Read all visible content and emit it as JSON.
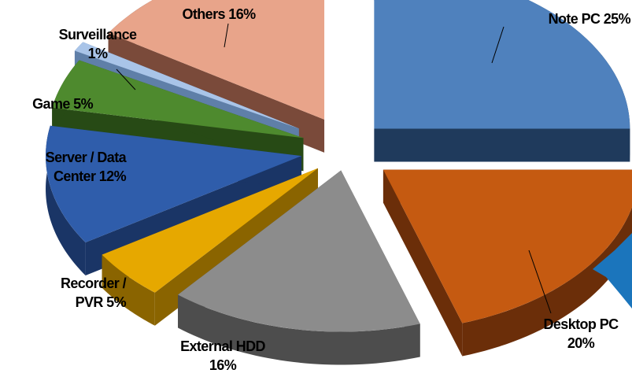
{
  "chart_data": {
    "type": "pie",
    "title": "",
    "slices": [
      {
        "name": "Note PC",
        "value": 25,
        "color": "#4f81bd",
        "side": "#1f3a5c",
        "label_lines": [
          "Note PC 25%"
        ]
      },
      {
        "name": "Desktop PC",
        "value": 20,
        "color": "#c55a11",
        "side": "#6b2e09",
        "label_lines": [
          "Desktop PC",
          "20%"
        ]
      },
      {
        "name": "External HDD",
        "value": 16,
        "color": "#8c8c8c",
        "side": "#4d4d4d",
        "label_lines": [
          "External HDD",
          "16%"
        ]
      },
      {
        "name": "Recorder / PVR",
        "value": 5,
        "color": "#e6a800",
        "side": "#8a6400",
        "label_lines": [
          "Recorder /",
          "PVR 5%"
        ]
      },
      {
        "name": "Server / Data Center",
        "value": 12,
        "color": "#2f5dab",
        "side": "#1a3566",
        "label_lines": [
          "Server / Data",
          "Center 12%"
        ]
      },
      {
        "name": "Game",
        "value": 5,
        "color": "#4e8a2e",
        "side": "#274a15",
        "label_lines": [
          "Game 5%"
        ]
      },
      {
        "name": "Surveillance",
        "value": 1,
        "color": "#a9c4e8",
        "side": "#5f7fa8",
        "label_lines": [
          "Surveillance",
          "1%"
        ]
      },
      {
        "name": "Others",
        "value": 16,
        "color": "#e8a48a",
        "side": "#7a4a3a",
        "label_lines": [
          "Others 16%"
        ]
      }
    ],
    "legend": "none",
    "grid": false
  },
  "decoration": {
    "arrow_color": "#1b75bc"
  }
}
